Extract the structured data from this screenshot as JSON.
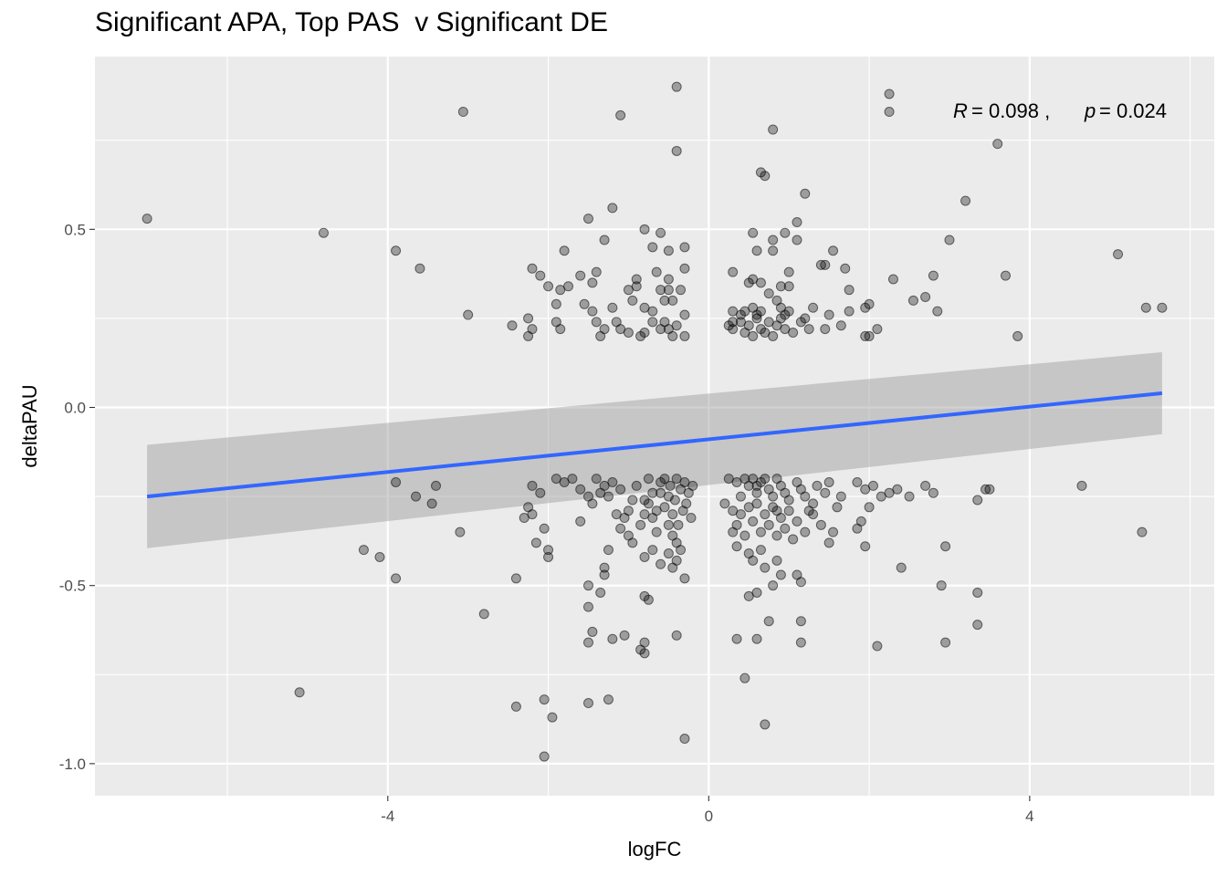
{
  "chart_data": {
    "type": "scatter",
    "title": "Significant APA, Top PAS  v Significant DE",
    "xlabel": "logFC",
    "ylabel": "deltaPAU",
    "xlim": [
      -7.65,
      6.3
    ],
    "ylim": [
      -1.09,
      0.985
    ],
    "x_ticks": [
      -4,
      0,
      4
    ],
    "x_tick_labels": [
      "-4",
      "0",
      "4"
    ],
    "y_ticks": [
      -1.0,
      -0.5,
      0.0,
      0.5
    ],
    "y_tick_labels": [
      "-1.0",
      "-0.5",
      "0.0",
      "0.5"
    ],
    "grid": true,
    "background": "#ebebeb",
    "point_color": "#000000",
    "point_opacity": 0.33,
    "annotation": {
      "r_label": "R",
      "r_value": "= 0.098 ,",
      "p_label": "p",
      "p_value": "= 0.024"
    },
    "regression": {
      "x": [
        -7.0,
        5.65
      ],
      "y": [
        -0.25,
        0.04
      ],
      "color": "#3366ff",
      "ci_lower": [
        -0.395,
        -0.075
      ],
      "ci_upper": [
        -0.105,
        0.155
      ],
      "ci_color": "#999999"
    },
    "points": [
      [
        -7.0,
        0.53
      ],
      [
        -4.8,
        0.49
      ],
      [
        -3.9,
        0.44
      ],
      [
        -3.6,
        0.39
      ],
      [
        -3.0,
        0.26
      ],
      [
        -3.06,
        0.83
      ],
      [
        -1.1,
        0.82
      ],
      [
        -0.4,
        0.9
      ],
      [
        -0.4,
        0.72
      ],
      [
        2.25,
        0.88
      ],
      [
        2.25,
        0.83
      ],
      [
        0.8,
        0.78
      ],
      [
        3.6,
        0.74
      ],
      [
        0.65,
        0.66
      ],
      [
        0.7,
        0.65
      ],
      [
        1.2,
        0.6
      ],
      [
        3.2,
        0.58
      ],
      [
        -1.2,
        0.56
      ],
      [
        -1.5,
        0.53
      ],
      [
        1.1,
        0.52
      ],
      [
        -0.8,
        0.5
      ],
      [
        -0.6,
        0.49
      ],
      [
        0.55,
        0.49
      ],
      [
        0.95,
        0.49
      ],
      [
        -1.3,
        0.47
      ],
      [
        0.8,
        0.47
      ],
      [
        1.1,
        0.47
      ],
      [
        3.0,
        0.47
      ],
      [
        -0.7,
        0.45
      ],
      [
        -0.3,
        0.45
      ],
      [
        -1.8,
        0.44
      ],
      [
        -0.5,
        0.44
      ],
      [
        0.6,
        0.44
      ],
      [
        0.8,
        0.44
      ],
      [
        1.55,
        0.44
      ],
      [
        5.1,
        0.43
      ],
      [
        -2.2,
        0.39
      ],
      [
        -1.4,
        0.38
      ],
      [
        -0.65,
        0.38
      ],
      [
        -0.3,
        0.39
      ],
      [
        0.3,
        0.38
      ],
      [
        1.0,
        0.38
      ],
      [
        1.7,
        0.39
      ],
      [
        2.8,
        0.37
      ],
      [
        3.7,
        0.37
      ],
      [
        -2.1,
        0.37
      ],
      [
        -1.6,
        0.37
      ],
      [
        -0.9,
        0.36
      ],
      [
        -0.5,
        0.36
      ],
      [
        0.55,
        0.36
      ],
      [
        0.65,
        0.35
      ],
      [
        1.4,
        0.4
      ],
      [
        1.45,
        0.4
      ],
      [
        2.3,
        0.36
      ],
      [
        -2.0,
        0.34
      ],
      [
        -1.75,
        0.34
      ],
      [
        -1.85,
        0.33
      ],
      [
        -1.45,
        0.35
      ],
      [
        -1.0,
        0.33
      ],
      [
        -0.9,
        0.34
      ],
      [
        -0.6,
        0.33
      ],
      [
        -0.5,
        0.33
      ],
      [
        -0.35,
        0.33
      ],
      [
        0.5,
        0.35
      ],
      [
        0.9,
        0.34
      ],
      [
        1.0,
        0.34
      ],
      [
        1.75,
        0.33
      ],
      [
        0.75,
        0.32
      ],
      [
        -1.9,
        0.29
      ],
      [
        -1.55,
        0.29
      ],
      [
        -1.45,
        0.27
      ],
      [
        -1.2,
        0.28
      ],
      [
        -0.95,
        0.3
      ],
      [
        -0.8,
        0.28
      ],
      [
        -0.7,
        0.27
      ],
      [
        -0.55,
        0.3
      ],
      [
        -0.45,
        0.3
      ],
      [
        -0.3,
        0.26
      ],
      [
        0.3,
        0.27
      ],
      [
        0.45,
        0.27
      ],
      [
        0.55,
        0.28
      ],
      [
        0.65,
        0.27
      ],
      [
        0.85,
        0.3
      ],
      [
        0.9,
        0.28
      ],
      [
        1.0,
        0.27
      ],
      [
        1.3,
        0.28
      ],
      [
        1.5,
        0.26
      ],
      [
        1.75,
        0.27
      ],
      [
        1.95,
        0.28
      ],
      [
        2.0,
        0.29
      ],
      [
        2.55,
        0.3
      ],
      [
        2.7,
        0.31
      ],
      [
        2.85,
        0.27
      ],
      [
        -2.45,
        0.23
      ],
      [
        -2.25,
        0.25
      ],
      [
        -2.2,
        0.22
      ],
      [
        -2.25,
        0.2
      ],
      [
        -1.9,
        0.24
      ],
      [
        -1.85,
        0.22
      ],
      [
        -1.4,
        0.24
      ],
      [
        -1.3,
        0.22
      ],
      [
        -1.35,
        0.2
      ],
      [
        -1.15,
        0.24
      ],
      [
        -1.1,
        0.22
      ],
      [
        -1.0,
        0.21
      ],
      [
        -0.85,
        0.2
      ],
      [
        -0.8,
        0.21
      ],
      [
        -0.7,
        0.24
      ],
      [
        -0.6,
        0.22
      ],
      [
        -0.55,
        0.24
      ],
      [
        -0.5,
        0.22
      ],
      [
        -0.45,
        0.2
      ],
      [
        -0.4,
        0.23
      ],
      [
        -0.3,
        0.2
      ],
      [
        0.25,
        0.23
      ],
      [
        0.3,
        0.22
      ],
      [
        0.4,
        0.24
      ],
      [
        0.45,
        0.21
      ],
      [
        0.5,
        0.23
      ],
      [
        0.55,
        0.2
      ],
      [
        0.6,
        0.25
      ],
      [
        0.65,
        0.22
      ],
      [
        0.7,
        0.21
      ],
      [
        0.75,
        0.24
      ],
      [
        0.8,
        0.2
      ],
      [
        0.85,
        0.23
      ],
      [
        0.9,
        0.25
      ],
      [
        0.95,
        0.22
      ],
      [
        1.05,
        0.21
      ],
      [
        1.15,
        0.24
      ],
      [
        1.25,
        0.22
      ],
      [
        1.45,
        0.22
      ],
      [
        1.65,
        0.23
      ],
      [
        1.95,
        0.2
      ],
      [
        2.0,
        0.2
      ],
      [
        2.1,
        0.22
      ],
      [
        3.85,
        0.2
      ],
      [
        5.45,
        0.28
      ],
      [
        5.65,
        0.28
      ],
      [
        0.4,
        0.26
      ],
      [
        0.6,
        0.26
      ],
      [
        0.95,
        0.26
      ],
      [
        1.2,
        0.25
      ],
      [
        0.3,
        0.24
      ],
      [
        -3.9,
        -0.21
      ],
      [
        -3.4,
        -0.22
      ],
      [
        -3.65,
        -0.25
      ],
      [
        -3.45,
        -0.27
      ],
      [
        -3.1,
        -0.35
      ],
      [
        -4.3,
        -0.4
      ],
      [
        -4.1,
        -0.42
      ],
      [
        -3.9,
        -0.48
      ],
      [
        -2.8,
        -0.58
      ],
      [
        -5.1,
        -0.8
      ],
      [
        -2.4,
        -0.48
      ],
      [
        -2.2,
        -0.22
      ],
      [
        -2.1,
        -0.24
      ],
      [
        -2.25,
        -0.28
      ],
      [
        -2.2,
        -0.3
      ],
      [
        -2.3,
        -0.31
      ],
      [
        -2.05,
        -0.34
      ],
      [
        -2.15,
        -0.38
      ],
      [
        -2.0,
        -0.4
      ],
      [
        -2.0,
        -0.42
      ],
      [
        -1.9,
        -0.2
      ],
      [
        -1.8,
        -0.21
      ],
      [
        -1.7,
        -0.2
      ],
      [
        -1.6,
        -0.23
      ],
      [
        -1.5,
        -0.25
      ],
      [
        -1.45,
        -0.27
      ],
      [
        -1.4,
        -0.2
      ],
      [
        -1.35,
        -0.24
      ],
      [
        -1.3,
        -0.22
      ],
      [
        -1.25,
        -0.25
      ],
      [
        -1.2,
        -0.21
      ],
      [
        -1.15,
        -0.3
      ],
      [
        -1.1,
        -0.23
      ],
      [
        -1.05,
        -0.31
      ],
      [
        -1.0,
        -0.29
      ],
      [
        -0.95,
        -0.26
      ],
      [
        -0.9,
        -0.22
      ],
      [
        -0.85,
        -0.33
      ],
      [
        -0.8,
        -0.3
      ],
      [
        -0.75,
        -0.27
      ],
      [
        -0.7,
        -0.24
      ],
      [
        -0.65,
        -0.35
      ],
      [
        -0.6,
        -0.21
      ],
      [
        -0.55,
        -0.28
      ],
      [
        -0.5,
        -0.25
      ],
      [
        -0.48,
        -0.22
      ],
      [
        -0.45,
        -0.3
      ],
      [
        -0.42,
        -0.26
      ],
      [
        -0.4,
        -0.2
      ],
      [
        -0.38,
        -0.33
      ],
      [
        -0.35,
        -0.23
      ],
      [
        -0.32,
        -0.29
      ],
      [
        -0.3,
        -0.21
      ],
      [
        -0.28,
        -0.27
      ],
      [
        -0.25,
        -0.24
      ],
      [
        -0.22,
        -0.31
      ],
      [
        -0.2,
        -0.22
      ],
      [
        -0.55,
        -0.2
      ],
      [
        -0.6,
        -0.24
      ],
      [
        -0.65,
        -0.29
      ],
      [
        -0.7,
        -0.31
      ],
      [
        -0.75,
        -0.2
      ],
      [
        -0.8,
        -0.26
      ],
      [
        -0.5,
        -0.33
      ],
      [
        -0.45,
        -0.36
      ],
      [
        -0.4,
        -0.38
      ],
      [
        -0.35,
        -0.4
      ],
      [
        -0.4,
        -0.43
      ],
      [
        -0.3,
        -0.48
      ],
      [
        -0.8,
        -0.42
      ],
      [
        -0.95,
        -0.38
      ],
      [
        -1.1,
        -0.34
      ],
      [
        -1.25,
        -0.4
      ],
      [
        -1.3,
        -0.45
      ],
      [
        -1.3,
        -0.47
      ],
      [
        -1.5,
        -0.5
      ],
      [
        -1.35,
        -0.52
      ],
      [
        -1.5,
        -0.56
      ],
      [
        -1.45,
        -0.63
      ],
      [
        -1.5,
        -0.66
      ],
      [
        -1.2,
        -0.65
      ],
      [
        -1.05,
        -0.64
      ],
      [
        -0.8,
        -0.53
      ],
      [
        -0.75,
        -0.54
      ],
      [
        -0.85,
        -0.68
      ],
      [
        -0.8,
        -0.66
      ],
      [
        -0.8,
        -0.69
      ],
      [
        -0.4,
        -0.64
      ],
      [
        -2.4,
        -0.84
      ],
      [
        -2.05,
        -0.82
      ],
      [
        -1.95,
        -0.87
      ],
      [
        -1.5,
        -0.83
      ],
      [
        -1.25,
        -0.82
      ],
      [
        -2.05,
        -0.98
      ],
      [
        -0.3,
        -0.93
      ],
      [
        -1.6,
        -0.32
      ],
      [
        -1.0,
        -0.36
      ],
      [
        -0.7,
        -0.4
      ],
      [
        -0.6,
        -0.44
      ],
      [
        -0.5,
        -0.41
      ],
      [
        -0.45,
        -0.45
      ],
      [
        0.25,
        -0.2
      ],
      [
        0.35,
        -0.21
      ],
      [
        0.45,
        -0.2
      ],
      [
        0.5,
        -0.22
      ],
      [
        0.55,
        -0.2
      ],
      [
        0.6,
        -0.24
      ],
      [
        0.65,
        -0.21
      ],
      [
        0.7,
        -0.2
      ],
      [
        0.75,
        -0.23
      ],
      [
        0.8,
        -0.25
      ],
      [
        0.85,
        -0.2
      ],
      [
        0.9,
        -0.22
      ],
      [
        0.95,
        -0.24
      ],
      [
        1.0,
        -0.26
      ],
      [
        1.1,
        -0.21
      ],
      [
        1.15,
        -0.23
      ],
      [
        1.2,
        -0.25
      ],
      [
        1.3,
        -0.27
      ],
      [
        1.35,
        -0.22
      ],
      [
        1.45,
        -0.24
      ],
      [
        1.5,
        -0.21
      ],
      [
        1.65,
        -0.25
      ],
      [
        1.85,
        -0.21
      ],
      [
        1.95,
        -0.23
      ],
      [
        2.05,
        -0.22
      ],
      [
        2.15,
        -0.25
      ],
      [
        2.25,
        -0.24
      ],
      [
        2.35,
        -0.23
      ],
      [
        2.5,
        -0.25
      ],
      [
        2.7,
        -0.22
      ],
      [
        2.8,
        -0.24
      ],
      [
        3.35,
        -0.26
      ],
      [
        3.45,
        -0.23
      ],
      [
        3.5,
        -0.23
      ],
      [
        4.65,
        -0.22
      ],
      [
        0.2,
        -0.27
      ],
      [
        0.3,
        -0.29
      ],
      [
        0.35,
        -0.33
      ],
      [
        0.4,
        -0.3
      ],
      [
        0.45,
        -0.36
      ],
      [
        0.5,
        -0.28
      ],
      [
        0.55,
        -0.32
      ],
      [
        0.6,
        -0.27
      ],
      [
        0.65,
        -0.35
      ],
      [
        0.7,
        -0.3
      ],
      [
        0.75,
        -0.33
      ],
      [
        0.8,
        -0.28
      ],
      [
        0.85,
        -0.36
      ],
      [
        0.9,
        -0.31
      ],
      [
        0.95,
        -0.34
      ],
      [
        1.0,
        -0.29
      ],
      [
        1.05,
        -0.37
      ],
      [
        1.1,
        -0.32
      ],
      [
        1.2,
        -0.35
      ],
      [
        1.3,
        -0.3
      ],
      [
        1.4,
        -0.33
      ],
      [
        1.5,
        -0.38
      ],
      [
        1.55,
        -0.35
      ],
      [
        1.85,
        -0.34
      ],
      [
        1.95,
        -0.39
      ],
      [
        2.0,
        -0.28
      ],
      [
        1.9,
        -0.32
      ],
      [
        0.3,
        -0.35
      ],
      [
        0.35,
        -0.39
      ],
      [
        0.5,
        -0.41
      ],
      [
        0.55,
        -0.43
      ],
      [
        0.65,
        -0.4
      ],
      [
        0.7,
        -0.45
      ],
      [
        0.85,
        -0.43
      ],
      [
        0.9,
        -0.47
      ],
      [
        1.1,
        -0.47
      ],
      [
        1.15,
        -0.49
      ],
      [
        0.8,
        -0.5
      ],
      [
        0.5,
        -0.53
      ],
      [
        0.6,
        -0.52
      ],
      [
        0.75,
        -0.6
      ],
      [
        0.35,
        -0.65
      ],
      [
        0.6,
        -0.65
      ],
      [
        0.45,
        -0.76
      ],
      [
        0.7,
        -0.89
      ],
      [
        1.15,
        -0.6
      ],
      [
        1.15,
        -0.66
      ],
      [
        2.1,
        -0.67
      ],
      [
        2.4,
        -0.45
      ],
      [
        2.95,
        -0.39
      ],
      [
        2.9,
        -0.5
      ],
      [
        2.95,
        -0.66
      ],
      [
        3.35,
        -0.52
      ],
      [
        3.35,
        -0.61
      ],
      [
        5.4,
        -0.35
      ],
      [
        0.4,
        -0.25
      ],
      [
        0.6,
        -0.22
      ],
      [
        0.85,
        -0.29
      ],
      [
        1.25,
        -0.29
      ],
      [
        1.6,
        -0.28
      ]
    ]
  }
}
